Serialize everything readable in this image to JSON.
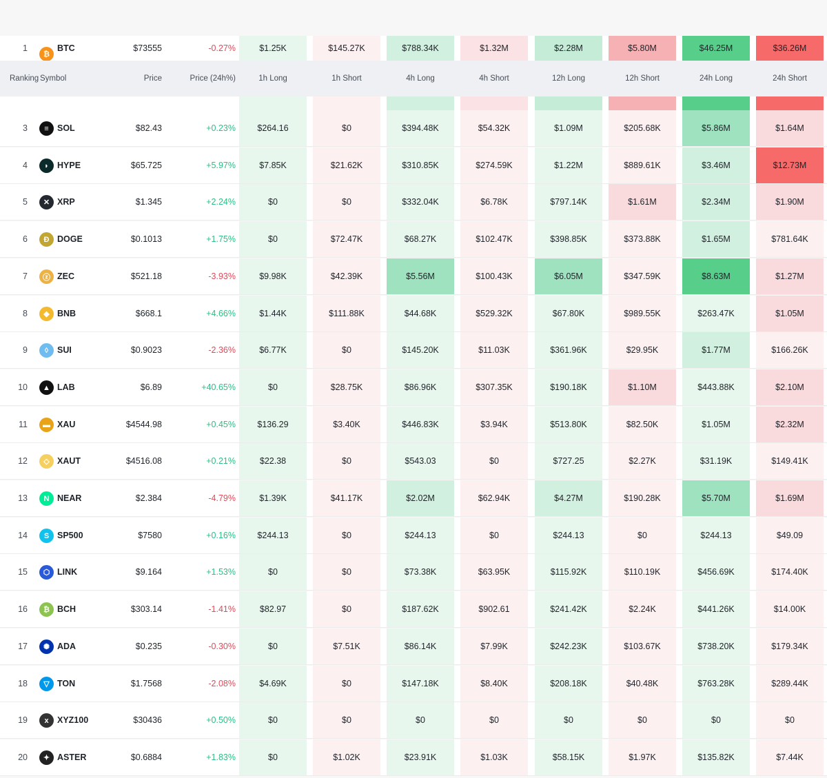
{
  "header": {
    "ranking": "Ranking",
    "symbol": "Symbol",
    "price": "Price",
    "price_change": "Price (24h%)",
    "cols": [
      "1h Long",
      "1h Short",
      "4h Long",
      "4h Short",
      "12h Long",
      "12h Short",
      "24h Long",
      "24h Short"
    ]
  },
  "partial_row": {
    "rank": "1",
    "symbol": "BTC",
    "price": "$73555",
    "change": "-0.27%",
    "values": [
      "$1.25K",
      "$145.27K",
      "$788.34K",
      "$1.32M",
      "$2.28M",
      "$5.80M",
      "$46.25M",
      "$36.26M"
    ]
  },
  "rows": [
    {
      "rank": "3",
      "symbol": "SOL",
      "icon": "sol-icon",
      "price": "$82.43",
      "change": "+0.23%",
      "values": [
        "$264.16",
        "$0",
        "$394.48K",
        "$54.32K",
        "$1.09M",
        "$205.68K",
        "$5.86M",
        "$1.64M"
      ]
    },
    {
      "rank": "4",
      "symbol": "HYPE",
      "icon": "hype-icon",
      "price": "$65.725",
      "change": "+5.97%",
      "values": [
        "$7.85K",
        "$21.62K",
        "$310.85K",
        "$274.59K",
        "$1.22M",
        "$889.61K",
        "$3.46M",
        "$12.73M"
      ]
    },
    {
      "rank": "5",
      "symbol": "XRP",
      "icon": "xrp-icon",
      "price": "$1.345",
      "change": "+2.24%",
      "values": [
        "$0",
        "$0",
        "$332.04K",
        "$6.78K",
        "$797.14K",
        "$1.61M",
        "$2.34M",
        "$1.90M"
      ]
    },
    {
      "rank": "6",
      "symbol": "DOGE",
      "icon": "doge-icon",
      "price": "$0.1013",
      "change": "+1.75%",
      "values": [
        "$0",
        "$72.47K",
        "$68.27K",
        "$102.47K",
        "$398.85K",
        "$373.88K",
        "$1.65M",
        "$781.64K"
      ]
    },
    {
      "rank": "7",
      "symbol": "ZEC",
      "icon": "zec-icon",
      "price": "$521.18",
      "change": "-3.93%",
      "values": [
        "$9.98K",
        "$42.39K",
        "$5.56M",
        "$100.43K",
        "$6.05M",
        "$347.59K",
        "$8.63M",
        "$1.27M"
      ]
    },
    {
      "rank": "8",
      "symbol": "BNB",
      "icon": "bnb-icon",
      "price": "$668.1",
      "change": "+4.66%",
      "values": [
        "$1.44K",
        "$111.88K",
        "$44.68K",
        "$529.32K",
        "$67.80K",
        "$989.55K",
        "$263.47K",
        "$1.05M"
      ]
    },
    {
      "rank": "9",
      "symbol": "SUI",
      "icon": "sui-icon",
      "price": "$0.9023",
      "change": "-2.36%",
      "values": [
        "$6.77K",
        "$0",
        "$145.20K",
        "$11.03K",
        "$361.96K",
        "$29.95K",
        "$1.77M",
        "$166.26K"
      ]
    },
    {
      "rank": "10",
      "symbol": "LAB",
      "icon": "lab-icon",
      "price": "$6.89",
      "change": "+40.65%",
      "values": [
        "$0",
        "$28.75K",
        "$86.96K",
        "$307.35K",
        "$190.18K",
        "$1.10M",
        "$443.88K",
        "$2.10M"
      ]
    },
    {
      "rank": "11",
      "symbol": "XAU",
      "icon": "xau-icon",
      "price": "$4544.98",
      "change": "+0.45%",
      "values": [
        "$136.29",
        "$3.40K",
        "$446.83K",
        "$3.94K",
        "$513.80K",
        "$82.50K",
        "$1.05M",
        "$2.32M"
      ]
    },
    {
      "rank": "12",
      "symbol": "XAUT",
      "icon": "xaut-icon",
      "price": "$4516.08",
      "change": "+0.21%",
      "values": [
        "$22.38",
        "$0",
        "$543.03",
        "$0",
        "$727.25",
        "$2.27K",
        "$31.19K",
        "$149.41K"
      ]
    },
    {
      "rank": "13",
      "symbol": "NEAR",
      "icon": "near-icon",
      "price": "$2.384",
      "change": "-4.79%",
      "values": [
        "$1.39K",
        "$41.17K",
        "$2.02M",
        "$62.94K",
        "$4.27M",
        "$190.28K",
        "$5.70M",
        "$1.69M"
      ]
    },
    {
      "rank": "14",
      "symbol": "SP500",
      "icon": "sp500-icon",
      "price": "$7580",
      "change": "+0.16%",
      "values": [
        "$244.13",
        "$0",
        "$244.13",
        "$0",
        "$244.13",
        "$0",
        "$244.13",
        "$49.09"
      ]
    },
    {
      "rank": "15",
      "symbol": "LINK",
      "icon": "link-icon",
      "price": "$9.164",
      "change": "+1.53%",
      "values": [
        "$0",
        "$0",
        "$73.38K",
        "$63.95K",
        "$115.92K",
        "$110.19K",
        "$456.69K",
        "$174.40K"
      ]
    },
    {
      "rank": "16",
      "symbol": "BCH",
      "icon": "bch-icon",
      "price": "$303.14",
      "change": "-1.41%",
      "values": [
        "$82.97",
        "$0",
        "$187.62K",
        "$902.61",
        "$241.42K",
        "$2.24K",
        "$441.26K",
        "$14.00K"
      ]
    },
    {
      "rank": "17",
      "symbol": "ADA",
      "icon": "ada-icon",
      "price": "$0.235",
      "change": "-0.30%",
      "values": [
        "$0",
        "$7.51K",
        "$86.14K",
        "$7.99K",
        "$242.23K",
        "$103.67K",
        "$738.20K",
        "$179.34K"
      ]
    },
    {
      "rank": "18",
      "symbol": "TON",
      "icon": "ton-icon",
      "price": "$1.7568",
      "change": "-2.08%",
      "values": [
        "$4.69K",
        "$0",
        "$147.18K",
        "$8.40K",
        "$208.18K",
        "$40.48K",
        "$763.28K",
        "$289.44K"
      ]
    },
    {
      "rank": "19",
      "symbol": "XYZ100",
      "icon": "xyz100-icon",
      "price": "$30436",
      "change": "+0.50%",
      "values": [
        "$0",
        "$0",
        "$0",
        "$0",
        "$0",
        "$0",
        "$0",
        "$0"
      ]
    },
    {
      "rank": "20",
      "symbol": "ASTER",
      "icon": "aster-icon",
      "price": "$0.6884",
      "change": "+1.83%",
      "values": [
        "$0",
        "$1.02K",
        "$23.91K",
        "$1.03K",
        "$58.15K",
        "$1.97K",
        "$135.82K",
        "$7.44K"
      ]
    }
  ],
  "colors": {
    "long_light": "#e8f7ee",
    "long_mid": "#d2f0df",
    "long_strong": "#9fe2bf",
    "long_max": "#57cf8a",
    "short_light": "#fdf0f1",
    "short_mid": "#f9dadd",
    "short_strong": "#f5b1b3",
    "short_max": "#f66a6a",
    "positive": "#2ebd85",
    "negative": "#e04a59"
  },
  "icon_colors": {
    "btc-icon": "#f7931a",
    "sol-icon": "#111111",
    "hype-icon": "#0b2a2a",
    "xrp-icon": "#23292f",
    "doge-icon": "#c2a633",
    "zec-icon": "#ecb244",
    "bnb-icon": "#f3ba2f",
    "sui-icon": "#6fbcf0",
    "lab-icon": "#111111",
    "xau-icon": "#e8a317",
    "xaut-icon": "#f5d061",
    "near-icon": "#00ec97",
    "sp500-icon": "#13c2ec",
    "link-icon": "#2a5ada",
    "bch-icon": "#8dc351",
    "ada-icon": "#0033ad",
    "ton-icon": "#0098ea",
    "xyz100-icon": "#333333",
    "aster-icon": "#222222"
  },
  "icon_glyphs": {
    "btc-icon": "₿",
    "sol-icon": "≡",
    "hype-icon": "◗",
    "xrp-icon": "✕",
    "doge-icon": "Ð",
    "zec-icon": "ⓩ",
    "bnb-icon": "◆",
    "sui-icon": "◊",
    "lab-icon": "▲",
    "xau-icon": "▬",
    "xaut-icon": "◇",
    "near-icon": "N",
    "sp500-icon": "S",
    "link-icon": "⬡",
    "bch-icon": "₿",
    "ada-icon": "✺",
    "ton-icon": "▽",
    "xyz100-icon": "x",
    "aster-icon": "✦"
  }
}
